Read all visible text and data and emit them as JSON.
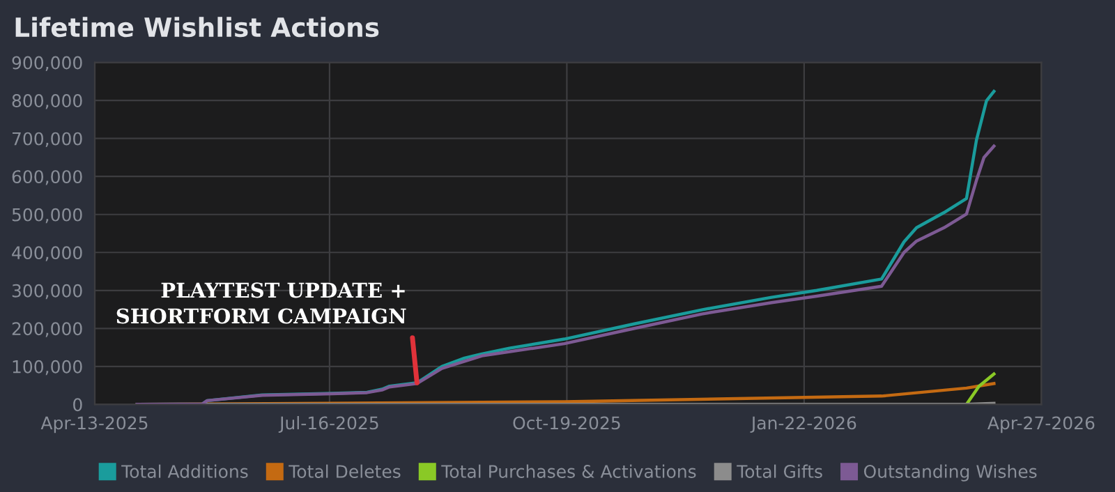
{
  "chart_data": {
    "type": "line",
    "title": "Lifetime Wishlist Actions",
    "xlim": [
      "2025-04-13",
      "2026-04-27"
    ],
    "xticks": [
      {
        "value": "2025-04-13",
        "label": "Apr-13-2025"
      },
      {
        "value": "2025-07-16",
        "label": "Jul-16-2025"
      },
      {
        "value": "2025-10-19",
        "label": "Oct-19-2025"
      },
      {
        "value": "2026-01-22",
        "label": "Jan-22-2026"
      },
      {
        "value": "2026-04-27",
        "label": "Apr-27-2026"
      }
    ],
    "ylim": [
      0,
      900000
    ],
    "yticks": [
      0,
      {
        "value": 100000,
        "label": "100,000"
      },
      {
        "value": 200000,
        "label": "200,000"
      },
      {
        "value": 300000,
        "label": "300,000"
      },
      {
        "value": 400000,
        "label": "400,000"
      },
      {
        "value": 500000,
        "label": "500,000"
      },
      {
        "value": 600000,
        "label": "600,000"
      },
      {
        "value": 700000,
        "label": "700,000"
      },
      {
        "value": 800000,
        "label": "800,000"
      },
      {
        "value": 900000,
        "label": "900,000"
      }
    ],
    "grid": true,
    "legend": "bottom",
    "marker": "none",
    "line_style": "solid",
    "series": [
      {
        "name": "Total Additions",
        "color": "#1a9c9c",
        "x": [
          "2025-04-30",
          "2025-05-26",
          "2025-05-28",
          "2025-06-19",
          "2025-07-17",
          "2025-07-31",
          "2025-08-06",
          "2025-08-09",
          "2025-08-20",
          "2025-08-30",
          "2025-09-08",
          "2025-09-15",
          "2025-09-26",
          "2025-10-18",
          "2025-11-15",
          "2025-12-12",
          "2026-01-09",
          "2026-01-27",
          "2026-02-22",
          "2026-03-03",
          "2026-03-08",
          "2026-03-19",
          "2026-03-28",
          "2026-04-01",
          "2026-04-05",
          "2026-04-08"
        ],
        "values": [
          0,
          1000,
          10000,
          25000,
          29000,
          32000,
          40000,
          48000,
          57000,
          100000,
          122000,
          133000,
          148000,
          172000,
          212000,
          249000,
          282000,
          300000,
          330000,
          428000,
          465000,
          505000,
          542000,
          696000,
          799000,
          824000
        ]
      },
      {
        "name": "Total Deletes",
        "color": "#c46a12",
        "x": [
          "2025-04-30",
          "2025-10-18",
          "2026-02-22",
          "2026-03-28",
          "2026-04-08"
        ],
        "values": [
          0,
          7000,
          22000,
          43000,
          55000
        ]
      },
      {
        "name": "Total Purchases & Activations",
        "color": "#8ac926",
        "x": [
          "2026-03-28",
          "2026-04-02",
          "2026-04-08"
        ],
        "values": [
          0,
          48000,
          80000
        ]
      },
      {
        "name": "Total Gifts",
        "color": "#8c8c8c",
        "x": [
          "2025-04-30",
          "2026-03-28",
          "2026-04-08"
        ],
        "values": [
          0,
          0,
          3000
        ]
      },
      {
        "name": "Outstanding Wishes",
        "color": "#7d5a94",
        "x": [
          "2025-04-30",
          "2025-05-26",
          "2025-05-28",
          "2025-06-19",
          "2025-07-17",
          "2025-07-31",
          "2025-08-06",
          "2025-08-09",
          "2025-08-20",
          "2025-08-30",
          "2025-09-15",
          "2025-10-18",
          "2025-11-15",
          "2025-12-12",
          "2026-01-09",
          "2026-01-27",
          "2026-02-22",
          "2026-03-03",
          "2026-03-08",
          "2026-03-19",
          "2026-03-28",
          "2026-04-01",
          "2026-04-04",
          "2026-04-08"
        ],
        "values": [
          0,
          1000,
          10000,
          24000,
          28000,
          31000,
          38000,
          46000,
          55000,
          95000,
          128000,
          160000,
          200000,
          238000,
          268000,
          285000,
          311000,
          400000,
          430000,
          465000,
          501000,
          590000,
          650000,
          680000
        ]
      }
    ],
    "annotations": [
      {
        "text": "PLAYTEST UPDATE +\nSHORTFORM CAMPAIGN",
        "x": "2025-08-20",
        "y": 57000
      }
    ]
  }
}
